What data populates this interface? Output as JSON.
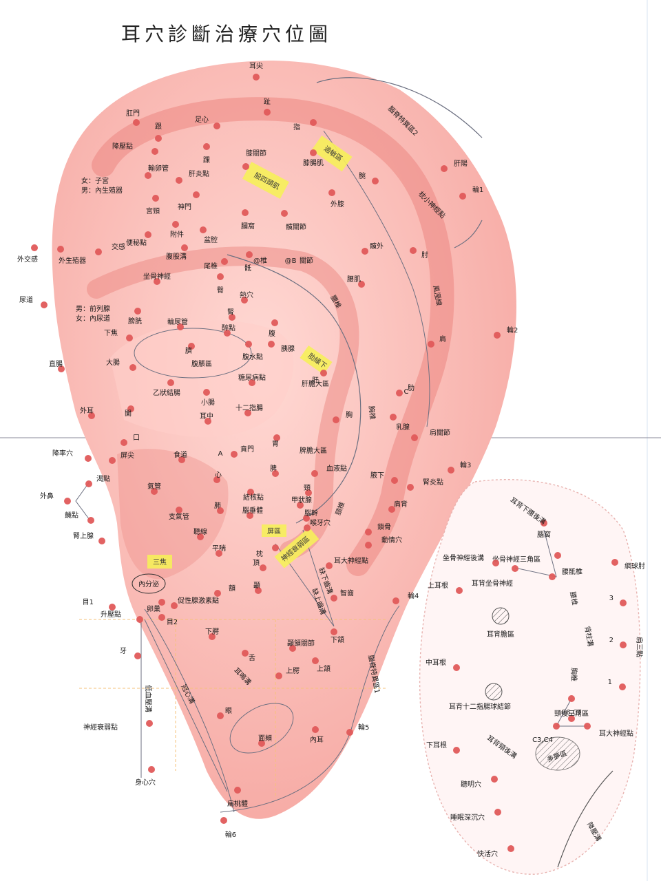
{
  "title": "耳穴診斷治療穴位圖",
  "colors": {
    "point": "#e05a5a",
    "ear": "#f7b5b0",
    "ear_deep": "#ee8a86",
    "highlight": "#f6ef5a",
    "line": "#6b6f80"
  },
  "front_points": [
    {
      "label": "耳尖"
    },
    {
      "label": "趾"
    },
    {
      "label": "指"
    },
    {
      "label": "肛門"
    },
    {
      "label": "足心"
    },
    {
      "label": "跟"
    },
    {
      "label": "降壓點"
    },
    {
      "label": "踝"
    },
    {
      "label": "膝關節"
    },
    {
      "label": "膝腸肌"
    },
    {
      "label": "輸卵管"
    },
    {
      "label": "肝炎點"
    },
    {
      "label": "腕"
    },
    {
      "label": "肝陽"
    },
    {
      "label": "輪1"
    },
    {
      "label": "宮頸"
    },
    {
      "label": "神門"
    },
    {
      "label": "外膝"
    },
    {
      "label": "附件"
    },
    {
      "label": "膕窩"
    },
    {
      "label": "髖關節"
    },
    {
      "label": "便秘點"
    },
    {
      "label": "盆腔"
    },
    {
      "label": "外交感"
    },
    {
      "label": "外生殖器"
    },
    {
      "label": "交感"
    },
    {
      "label": "腹股溝"
    },
    {
      "label": "尾椎"
    },
    {
      "label": "骶"
    },
    {
      "label": "髖外"
    },
    {
      "label": "肘"
    },
    {
      "label": "坐骨神經"
    },
    {
      "label": "臀"
    },
    {
      "label": "腰肌"
    },
    {
      "label": "熱穴"
    },
    {
      "label": "尿道"
    },
    {
      "label": "膀胱"
    },
    {
      "label": "腎"
    },
    {
      "label": "輪尿管"
    },
    {
      "label": "腹"
    },
    {
      "label": "醉點"
    },
    {
      "label": "下焦"
    },
    {
      "label": "臍"
    },
    {
      "label": "腹水點"
    },
    {
      "label": "胰腺"
    },
    {
      "label": "肩"
    },
    {
      "label": "輪2"
    },
    {
      "label": "直腸"
    },
    {
      "label": "大腸"
    },
    {
      "label": "肝"
    },
    {
      "label": "糖尿病點"
    },
    {
      "label": "乙狀結腸"
    },
    {
      "label": "肋"
    },
    {
      "label": "小腸"
    },
    {
      "label": "闌"
    },
    {
      "label": "外耳"
    },
    {
      "label": "十二指腸"
    },
    {
      "label": "胸"
    },
    {
      "label": "乳腺"
    },
    {
      "label": "耳中"
    },
    {
      "label": "胃"
    },
    {
      "label": "肩關節"
    },
    {
      "label": "口"
    },
    {
      "label": "賁門"
    },
    {
      "label": "降率穴"
    },
    {
      "label": "屏尖"
    },
    {
      "label": "食道"
    },
    {
      "label": "脾"
    },
    {
      "label": "血液點"
    },
    {
      "label": "輪3"
    },
    {
      "label": "渴點"
    },
    {
      "label": "心"
    },
    {
      "label": "腋下"
    },
    {
      "label": "腎炎點"
    },
    {
      "label": "外鼻"
    },
    {
      "label": "氣管"
    },
    {
      "label": "結核點"
    },
    {
      "label": "頸"
    },
    {
      "label": "肩背"
    },
    {
      "label": "饑點"
    },
    {
      "label": "支氣管"
    },
    {
      "label": "肺"
    },
    {
      "label": "腦垂體"
    },
    {
      "label": "腦幹"
    },
    {
      "label": "甲狀腺"
    },
    {
      "label": "腎上腺"
    },
    {
      "label": "喉牙穴"
    },
    {
      "label": "鎖骨"
    },
    {
      "label": "聽線"
    },
    {
      "label": "動情穴"
    },
    {
      "label": "平喘"
    },
    {
      "label": "枕"
    },
    {
      "label": "耳大神經點"
    },
    {
      "label": "頂"
    },
    {
      "label": "額"
    },
    {
      "label": "顳"
    },
    {
      "label": "智齒"
    },
    {
      "label": "輪4"
    },
    {
      "label": "目1"
    },
    {
      "label": "卵巢"
    },
    {
      "label": "促性腺激素點"
    },
    {
      "label": "升壓點"
    },
    {
      "label": "目2"
    },
    {
      "label": "下腭"
    },
    {
      "label": "下頷"
    },
    {
      "label": "牙"
    },
    {
      "label": "舌"
    },
    {
      "label": "顳頷關節"
    },
    {
      "label": "上頷"
    },
    {
      "label": "上腭"
    },
    {
      "label": "眼"
    },
    {
      "label": "神經衰弱點"
    },
    {
      "label": "內耳"
    },
    {
      "label": "輪5"
    },
    {
      "label": "面頰"
    },
    {
      "label": "身心穴"
    },
    {
      "label": "扁桃體"
    },
    {
      "label": "輪6"
    }
  ],
  "front_extra_labels": [
    {
      "label": "女：子宮"
    },
    {
      "label": "男：內生殖器"
    },
    {
      "label": "男：前列腺"
    },
    {
      "label": "女：內尿道"
    },
    {
      "label": "腹脹區"
    },
    {
      "label": "內分泌"
    },
    {
      "label": "肝膽大區"
    },
    {
      "label": "脾膽大區"
    },
    {
      "label": "腰椎"
    },
    {
      "label": "胸椎"
    },
    {
      "label": "頸椎"
    },
    {
      "label": "風溼線"
    },
    {
      "label": "枕小神經點"
    },
    {
      "label": "腦脊特異區2"
    },
    {
      "label": "腦脊特異區1"
    },
    {
      "label": "低血壓溝"
    },
    {
      "label": "冠心溝"
    },
    {
      "label": "耳鳴溝"
    },
    {
      "label": "缺下齒溝"
    },
    {
      "label": "缺上齒溝"
    },
    {
      "label": "@椎"
    },
    {
      "label": "@B"
    },
    {
      "label": "關節"
    },
    {
      "label": "C"
    },
    {
      "label": "A"
    }
  ],
  "yellow_labels": [
    {
      "label": "過敏區"
    },
    {
      "label": "股四頭肌"
    },
    {
      "label": "肋緣下"
    },
    {
      "label": "三焦"
    },
    {
      "label": "神經衰弱區"
    },
    {
      "label": "屏區"
    }
  ],
  "back_points": [
    {
      "label": "腦窩"
    },
    {
      "label": "坐骨神經三角區"
    },
    {
      "label": "坐骨神經後溝"
    },
    {
      "label": "腰骶椎"
    },
    {
      "label": "網球肘"
    },
    {
      "label": "耳背坐骨神經"
    },
    {
      "label": "上耳根"
    },
    {
      "label": "3"
    },
    {
      "label": "2"
    },
    {
      "label": "1"
    },
    {
      "label": "中耳根"
    },
    {
      "label": "C6,C7"
    },
    {
      "label": "頸後三角區"
    },
    {
      "label": "C3,C4"
    },
    {
      "label": "耳大神經點"
    },
    {
      "label": "下耳根"
    },
    {
      "label": "聽明穴"
    },
    {
      "label": "睡眠深沉穴"
    },
    {
      "label": "快活穴"
    }
  ],
  "back_extra_labels": [
    {
      "label": "耳背下腰後溝"
    },
    {
      "label": "腰椎"
    },
    {
      "label": "背柱溝"
    },
    {
      "label": "胸椎"
    },
    {
      "label": "耳背膽區"
    },
    {
      "label": "耳背十二指腸球結節"
    },
    {
      "label": "耳背頸後溝"
    },
    {
      "label": "多夢區"
    },
    {
      "label": "肩三點"
    },
    {
      "label": "降壓溝"
    }
  ]
}
